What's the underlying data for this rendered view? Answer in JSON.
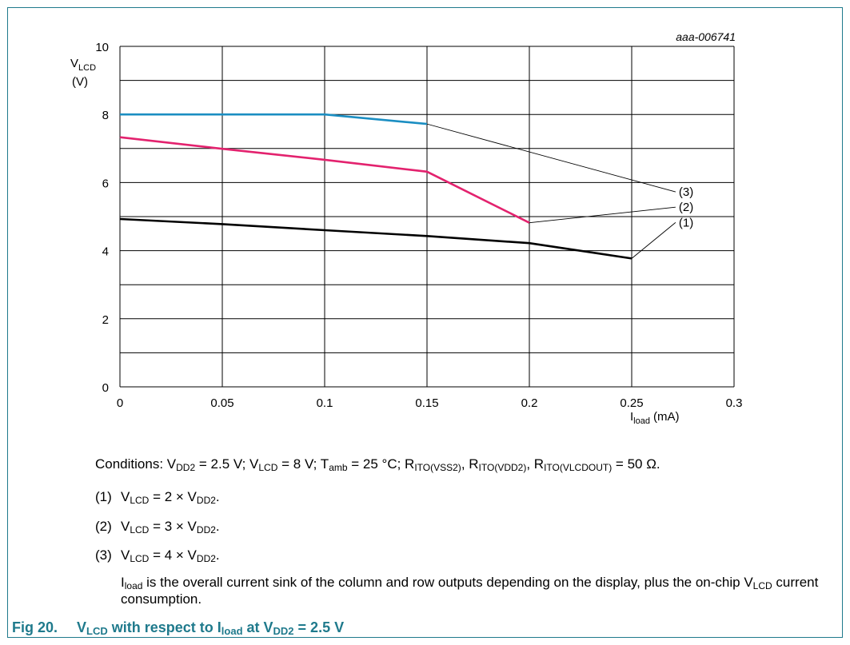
{
  "chart_data": {
    "type": "line",
    "code": "aaa-006741",
    "ylabel_main": "V",
    "ylabel_sub": "LCD",
    "ylabel_unit": "(V)",
    "xlabel_main": "I",
    "xlabel_sub": "load",
    "xlabel_unit": "(mA)",
    "xlim": [
      0,
      0.3
    ],
    "ylim": [
      0,
      10
    ],
    "grid": true,
    "x_ticks": [
      "0",
      "0.05",
      "0.1",
      "0.15",
      "0.2",
      "0.25",
      "0.3"
    ],
    "y_ticks": [
      "0",
      "2",
      "4",
      "6",
      "8",
      "10"
    ],
    "series": [
      {
        "name": "(3)",
        "color": "#1b8ec2",
        "x": [
          0,
          0.1,
          0.15,
          0.2
        ],
        "y": [
          8.0,
          8.0,
          7.72,
          6.9
        ]
      },
      {
        "name": "(2)",
        "color": "#e3226e",
        "x": [
          0,
          0.05,
          0.1,
          0.15,
          0.2
        ],
        "y": [
          7.33,
          6.99,
          6.67,
          6.32,
          4.82
        ]
      },
      {
        "name": "(1)",
        "color": "#000000",
        "x": [
          0,
          0.05,
          0.1,
          0.15,
          0.2,
          0.25
        ],
        "y": [
          4.93,
          4.78,
          4.6,
          4.43,
          4.22,
          3.77
        ]
      }
    ],
    "series_label_anchors": [
      {
        "label": "(3)",
        "x": 0.273,
        "y": 5.75,
        "from_x": 0.15,
        "from_y": 7.72
      },
      {
        "label": "(2)",
        "x": 0.273,
        "y": 5.3,
        "from_x": 0.2,
        "from_y": 4.82
      },
      {
        "label": "(1)",
        "x": 0.273,
        "y": 4.85,
        "from_x": 0.25,
        "from_y": 3.77
      }
    ]
  },
  "conditions": {
    "prefix": "Conditions: V",
    "vdd2_sub": "DD2",
    "vdd2_val": " = 2.5 V; V",
    "vlcd_sub": "LCD",
    "vlcd_val": " = 8 V; T",
    "tamb_sub": "amb",
    "tamb_val": " = 25 °C; R",
    "r1_sub": "ITO(VSS2)",
    "r1_sep": ", R",
    "r2_sub": "ITO(VDD2)",
    "r2_sep": ", R",
    "r3_sub": "ITO(VLCDOUT)",
    "r3_val": " = 50 Ω."
  },
  "notes": [
    {
      "num": "(1)",
      "v": "V",
      "lcd": "LCD",
      "mid": " = 2 × V",
      "dd2": "DD2",
      "end": "."
    },
    {
      "num": "(2)",
      "v": "V",
      "lcd": "LCD",
      "mid": " = 3 × V",
      "dd2": "DD2",
      "end": "."
    },
    {
      "num": "(3)",
      "v": "V",
      "lcd": "LCD",
      "mid": " = 4 × V",
      "dd2": "DD2",
      "end": "."
    }
  ],
  "explanation": {
    "i": "I",
    "load": "load",
    "text1": " is the overall current sink of the column and row outputs depending on the display, plus the on-chip V",
    "lcd": "LCD",
    "text2": " current consumption."
  },
  "caption": {
    "fig": "Fig 20.",
    "v": "V",
    "lcd": "LCD",
    "mid1": " with respect to I",
    "load": "load",
    "mid2": " at V",
    "dd2": "DD2",
    "end": " = 2.5 V"
  }
}
